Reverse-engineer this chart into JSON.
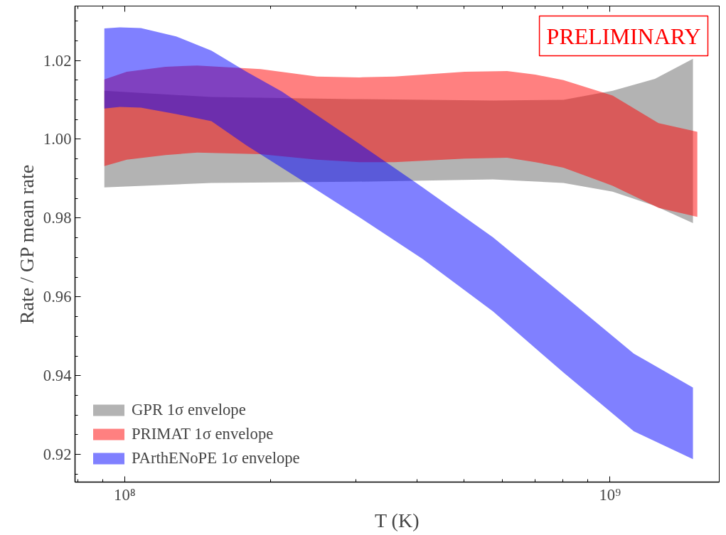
{
  "chart_data": {
    "type": "area",
    "xlabel": "T (K)",
    "ylabel": "Rate / GP mean rate",
    "log": "x",
    "xlim": [
      79000000.0,
      1680000000.0
    ],
    "ylim": [
      0.913,
      1.0338
    ],
    "xticks": [
      {
        "value": 100000000,
        "label": "10⁸"
      },
      {
        "value": 1000000000,
        "label": "10⁹"
      }
    ],
    "yticks": [
      {
        "value": 0.92,
        "label": "0.92"
      },
      {
        "value": 0.94,
        "label": "0.94"
      },
      {
        "value": 0.96,
        "label": "0.96"
      },
      {
        "value": 0.98,
        "label": "0.98"
      },
      {
        "value": 1.0,
        "label": "1.00"
      },
      {
        "value": 1.02,
        "label": "1.02"
      }
    ],
    "grid": false,
    "legend": "bottom left",
    "annotations": [
      "PRELIMINARY"
    ],
    "series": [
      {
        "name": "GPR 1σ envelope",
        "color": "#b3b3b3",
        "x": [
          90800000.0,
          150900000.0,
          294300000.0,
          574100000.0,
          802000000.0,
          1013000000.0,
          1238000000.0,
          1483000000.0
        ],
        "values": [
          null,
          null,
          null,
          null,
          null,
          null,
          null,
          null
        ],
        "lower": [
          0.9878,
          0.9889,
          0.9892,
          0.9898,
          0.9889,
          0.9867,
          0.9831,
          0.9787
        ],
        "upper": [
          1.0123,
          1.0107,
          1.0102,
          1.0098,
          1.01,
          1.0123,
          1.0153,
          1.0204
        ]
      },
      {
        "name": "PRIMAT 1σ envelope",
        "color": "#ff8080",
        "x": [
          90800000.0,
          101000000.0,
          121400000.0,
          141100000.0,
          190600000.0,
          249000000.0,
          304300000.0,
          359700000.0,
          502300000.0,
          614000000.0,
          702000000.0,
          802000000.0,
          1013000000.0,
          1259000000.0,
          1514000000.0
        ],
        "values": [
          null,
          null,
          null,
          null,
          null,
          null,
          null,
          null,
          null,
          null,
          null,
          null,
          null,
          null,
          null
        ],
        "lower": [
          0.9932,
          0.9948,
          0.996,
          0.9966,
          0.9962,
          0.9948,
          0.9942,
          0.9942,
          0.9951,
          0.9953,
          0.9942,
          0.9928,
          0.9882,
          0.9826,
          0.9803
        ],
        "upper": [
          1.0152,
          1.0171,
          1.0184,
          1.0187,
          1.0178,
          1.0159,
          1.0157,
          1.0159,
          1.0171,
          1.0173,
          1.0164,
          1.015,
          1.0111,
          1.0041,
          1.0019
        ]
      },
      {
        "name": "PArthENoPE 1σ envelope",
        "color": "#8080ff",
        "x": [
          90800000.0,
          97700000.0,
          108000000.0,
          127600000.0,
          150900000.0,
          178300000.0,
          210700000.0,
          294300000.0,
          411200000.0,
          574100000.0,
          802000000.0,
          1120000000.0,
          1483000000.0
        ],
        "values": [
          null,
          null,
          null,
          null,
          null,
          null,
          null,
          null,
          null,
          null,
          null,
          null,
          null
        ],
        "lower": [
          1.0078,
          1.0082,
          1.008,
          1.0064,
          1.0046,
          0.9984,
          0.9928,
          0.9814,
          0.9696,
          0.9563,
          0.9408,
          0.9259,
          0.9188
        ],
        "upper": [
          1.0281,
          1.0284,
          1.0282,
          1.0261,
          1.0225,
          1.0171,
          1.0121,
          1.0001,
          0.9878,
          0.9751,
          0.9604,
          0.9456,
          0.937
        ]
      }
    ]
  }
}
